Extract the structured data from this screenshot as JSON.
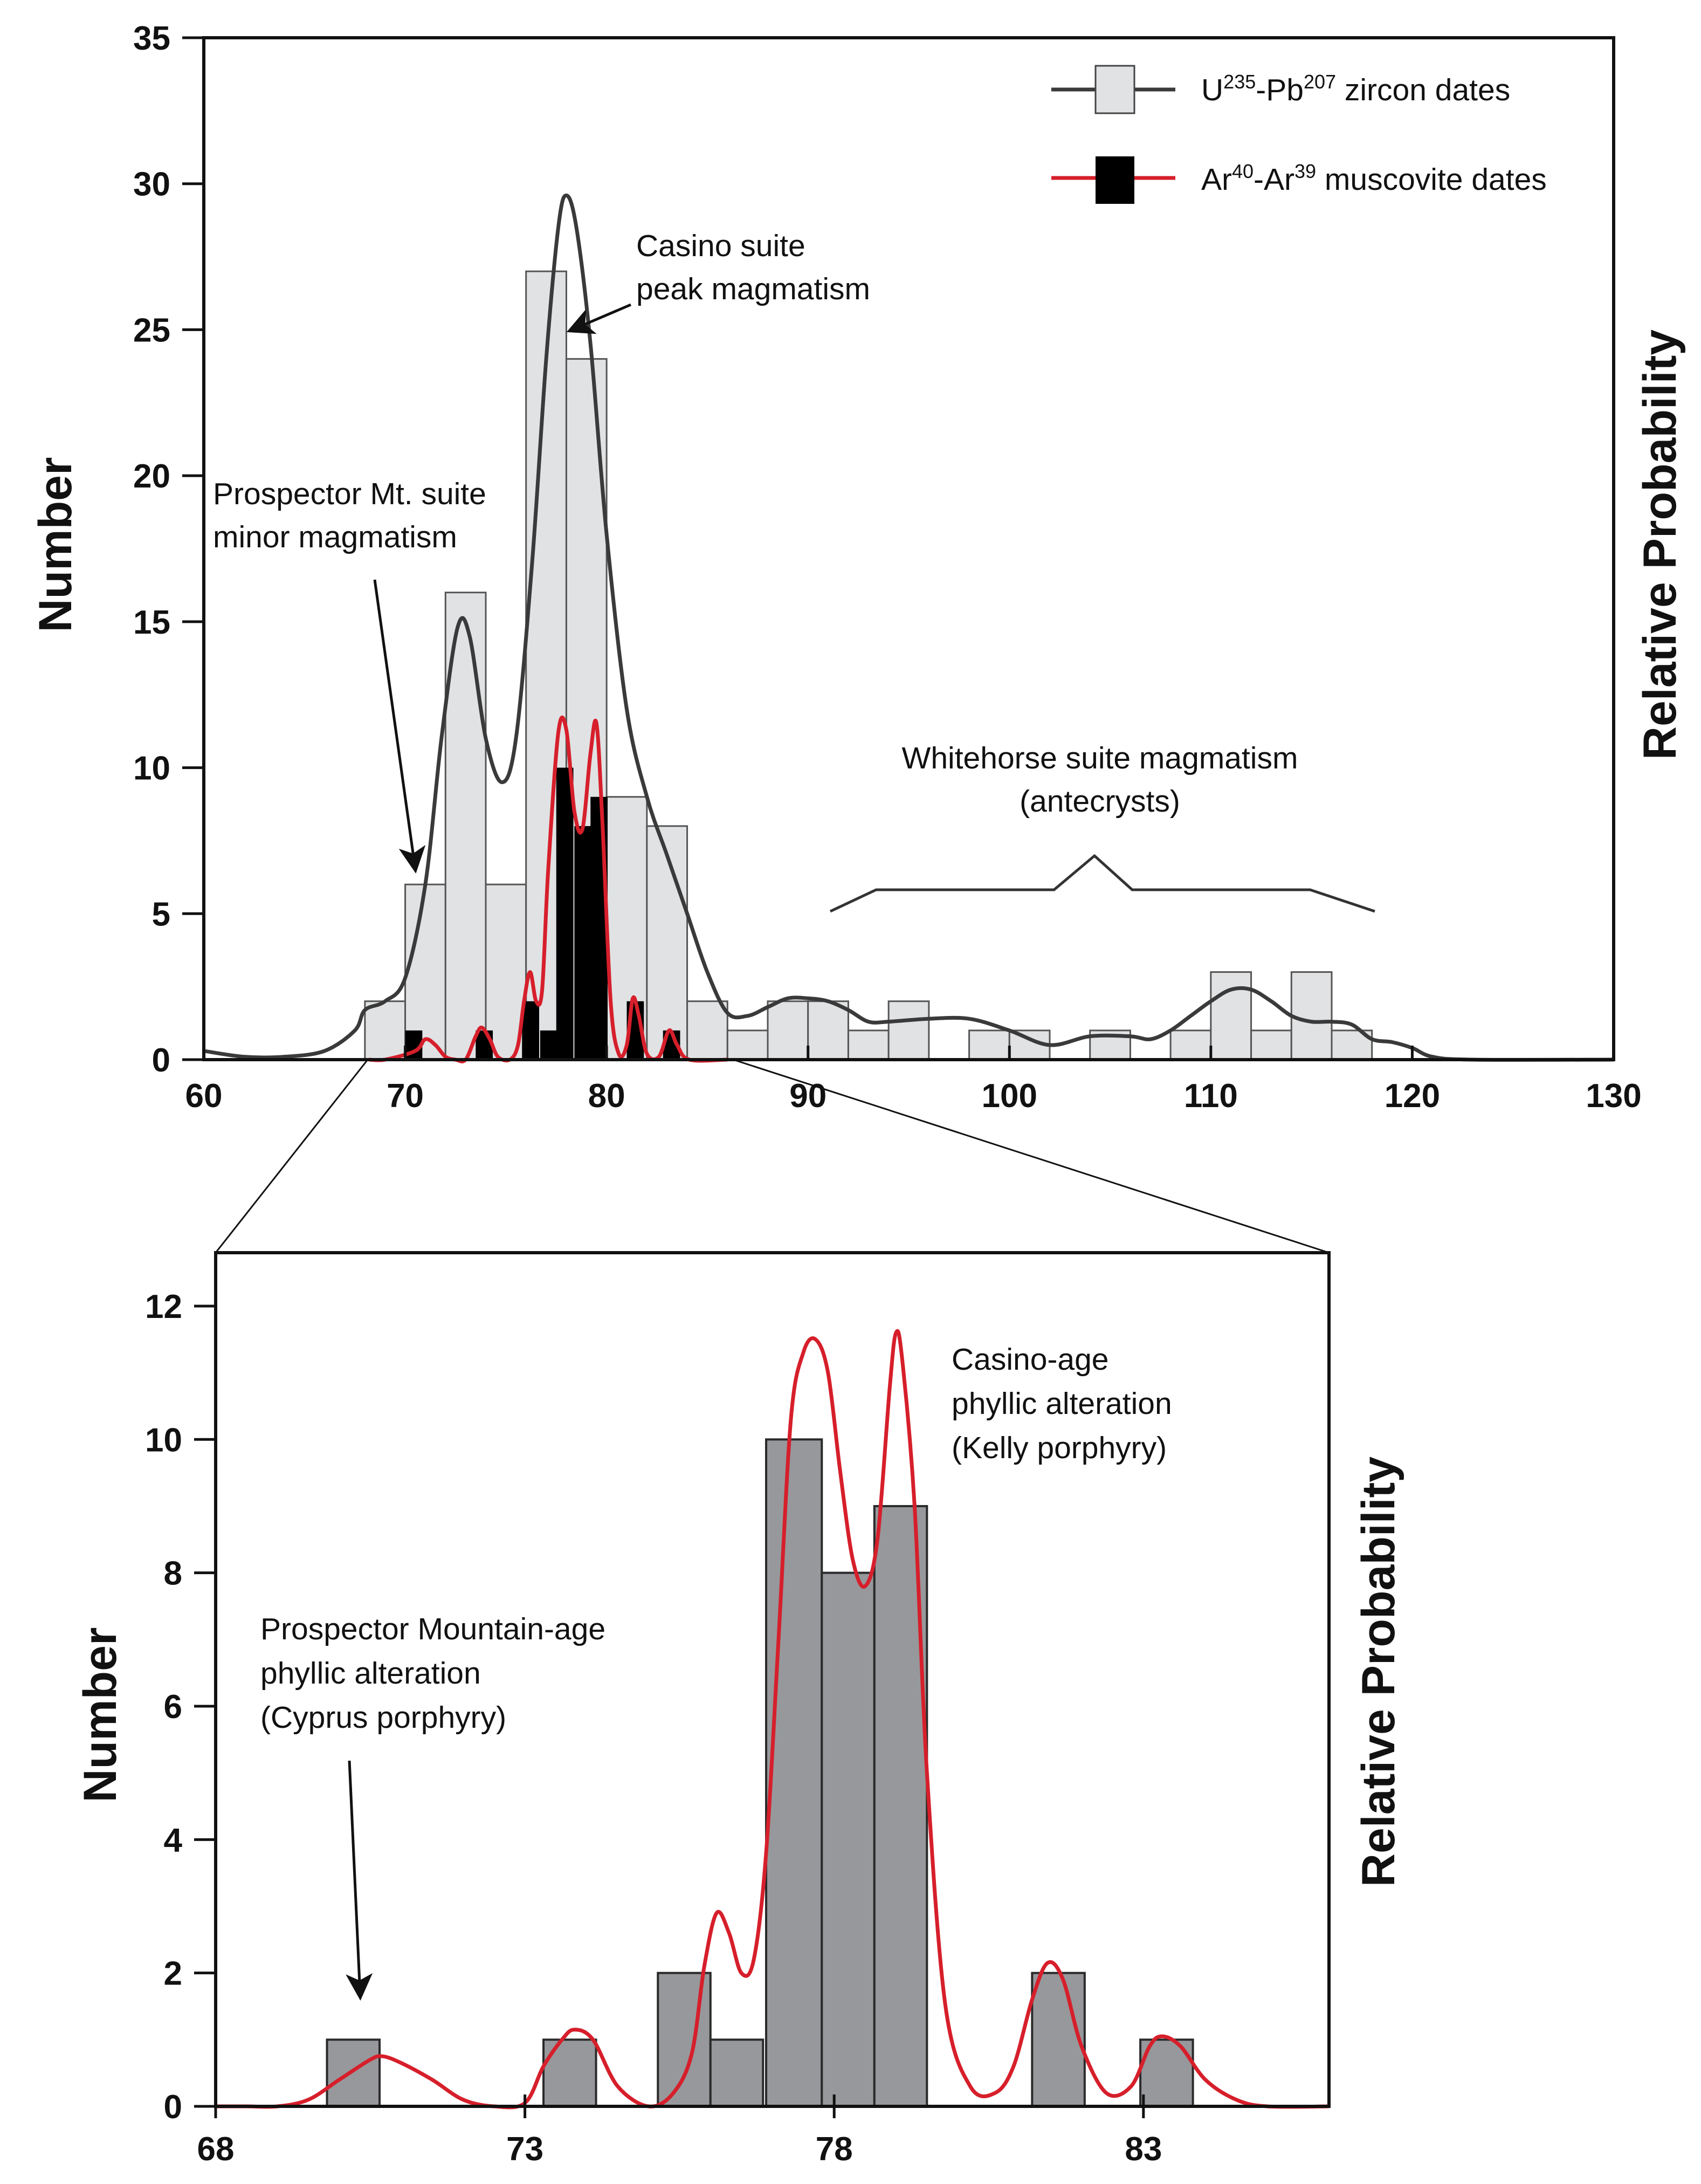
{
  "colors": {
    "zircon_bar": "#e1e2e4",
    "muscovite_bar": "#000000",
    "zoom_bar": "#97989b",
    "zircon_curve": "#3a3a3a",
    "muscovite_curve": "#d61f2b",
    "axis": "#111111"
  },
  "chart_data": [
    {
      "id": "main",
      "type": "bar",
      "ylabel": "Number",
      "y2label": "Relative Probability",
      "xlim": [
        60,
        130
      ],
      "ylim": [
        0,
        35
      ],
      "x_ticks": [
        "60",
        "70",
        "80",
        "90",
        "100",
        "110",
        "120",
        "130"
      ],
      "x_tick_values": [
        60,
        70,
        80,
        90,
        100,
        110,
        120,
        130
      ],
      "y_ticks": [
        "0",
        "5",
        "10",
        "15",
        "20",
        "25",
        "30",
        "35"
      ],
      "y_tick_values": [
        0,
        5,
        10,
        15,
        20,
        25,
        30,
        35
      ],
      "bin_width": 2,
      "legend": {
        "zircon": {
          "base": "U",
          "sup1": "235",
          "mid": "-Pb",
          "sup2": "207",
          "tail": " zircon dates"
        },
        "muscovite": {
          "base": "Ar",
          "sup1": "40",
          "mid": "-Ar",
          "sup2": "39",
          "tail": " muscovite dates"
        }
      },
      "series": [
        {
          "name": "U235-Pb207 zircon dates",
          "bins": [
            {
              "start": 68,
              "value": 2
            },
            {
              "start": 70,
              "value": 6
            },
            {
              "start": 72,
              "value": 16
            },
            {
              "start": 74,
              "value": 6
            },
            {
              "start": 76,
              "value": 27
            },
            {
              "start": 78,
              "value": 24
            },
            {
              "start": 80,
              "value": 9
            },
            {
              "start": 82,
              "value": 8
            },
            {
              "start": 84,
              "value": 2
            },
            {
              "start": 86,
              "value": 1
            },
            {
              "start": 88,
              "value": 2
            },
            {
              "start": 90,
              "value": 2
            },
            {
              "start": 92,
              "value": 1
            },
            {
              "start": 94,
              "value": 2
            },
            {
              "start": 98,
              "value": 1
            },
            {
              "start": 100,
              "value": 1
            },
            {
              "start": 104,
              "value": 1
            },
            {
              "start": 108,
              "value": 1
            },
            {
              "start": 110,
              "value": 3
            },
            {
              "start": 112,
              "value": 1
            },
            {
              "start": 114,
              "value": 3
            },
            {
              "start": 116,
              "value": 1
            }
          ]
        },
        {
          "name": "Ar40-Ar39 muscovite dates",
          "bins": [
            {
              "start": 70,
              "value": 1
            },
            {
              "start": 73.5,
              "value": 1
            },
            {
              "start": 75.8,
              "value": 2
            },
            {
              "start": 76.7,
              "value": 1
            },
            {
              "start": 77.5,
              "value": 10
            },
            {
              "start": 78.4,
              "value": 8
            },
            {
              "start": 79.2,
              "value": 9
            },
            {
              "start": 81,
              "value": 2
            },
            {
              "start": 82.8,
              "value": 1
            }
          ]
        }
      ],
      "curves": [
        {
          "name": "zircon relative probability",
          "points": [
            [
              60,
              0.3
            ],
            [
              62,
              0.1
            ],
            [
              64,
              0.1
            ],
            [
              66,
              0.3
            ],
            [
              67.5,
              1.0
            ],
            [
              68,
              1.7
            ],
            [
              69,
              2.0
            ],
            [
              70,
              2.8
            ],
            [
              71,
              6.0
            ],
            [
              71.8,
              11.0
            ],
            [
              72.6,
              14.8
            ],
            [
              73.2,
              14.5
            ],
            [
              74,
              11.0
            ],
            [
              74.8,
              9.5
            ],
            [
              75.5,
              11.0
            ],
            [
              76.3,
              17.0
            ],
            [
              77,
              24.0
            ],
            [
              77.6,
              28.5
            ],
            [
              78,
              29.6
            ],
            [
              78.5,
              28.5
            ],
            [
              79.2,
              24.5
            ],
            [
              80,
              18.0
            ],
            [
              81,
              12.0
            ],
            [
              82,
              9.0
            ],
            [
              83,
              7.0
            ],
            [
              84,
              5.0
            ],
            [
              85,
              3.0
            ],
            [
              86,
              1.6
            ],
            [
              87,
              1.5
            ],
            [
              88,
              1.8
            ],
            [
              89,
              2.1
            ],
            [
              90,
              2.1
            ],
            [
              91,
              2.0
            ],
            [
              92,
              1.7
            ],
            [
              93,
              1.3
            ],
            [
              94,
              1.3
            ],
            [
              96,
              1.4
            ],
            [
              98,
              1.4
            ],
            [
              100,
              1.0
            ],
            [
              102,
              0.5
            ],
            [
              104,
              0.8
            ],
            [
              106,
              0.8
            ],
            [
              107,
              0.7
            ],
            [
              108,
              1.0
            ],
            [
              109,
              1.5
            ],
            [
              110,
              2.0
            ],
            [
              111,
              2.4
            ],
            [
              112,
              2.4
            ],
            [
              113,
              2.0
            ],
            [
              114,
              1.5
            ],
            [
              115,
              1.3
            ],
            [
              116,
              1.3
            ],
            [
              117,
              1.2
            ],
            [
              118,
              0.7
            ],
            [
              119,
              0.6
            ],
            [
              120,
              0.4
            ],
            [
              121,
              0.1
            ],
            [
              123,
              0.0
            ],
            [
              130,
              0.0
            ]
          ]
        },
        {
          "name": "muscovite relative probability",
          "points": [
            [
              68.2,
              0.0
            ],
            [
              69,
              0.0
            ],
            [
              70.5,
              0.3
            ],
            [
              71,
              0.7
            ],
            [
              71.5,
              0.5
            ],
            [
              72,
              0.1
            ],
            [
              72.5,
              0.0
            ],
            [
              73,
              0.0
            ],
            [
              73.5,
              0.8
            ],
            [
              73.8,
              1.1
            ],
            [
              74.2,
              0.7
            ],
            [
              74.6,
              0.1
            ],
            [
              75.2,
              0.0
            ],
            [
              75.6,
              0.5
            ],
            [
              75.9,
              2.0
            ],
            [
              76.2,
              3.0
            ],
            [
              76.5,
              2.0
            ],
            [
              76.8,
              2.4
            ],
            [
              77.1,
              6.5
            ],
            [
              77.6,
              11.2
            ],
            [
              78,
              11.3
            ],
            [
              78.4,
              8.5
            ],
            [
              78.8,
              7.9
            ],
            [
              79.2,
              10.5
            ],
            [
              79.5,
              11.5
            ],
            [
              79.8,
              8.0
            ],
            [
              80.2,
              2.0
            ],
            [
              80.6,
              0.2
            ],
            [
              81,
              0.5
            ],
            [
              81.3,
              2.1
            ],
            [
              81.6,
              1.5
            ],
            [
              82,
              0.2
            ],
            [
              82.6,
              0.1
            ],
            [
              83.1,
              1.0
            ],
            [
              83.5,
              0.5
            ],
            [
              84.1,
              0.0
            ],
            [
              86,
              0.0
            ]
          ]
        }
      ],
      "annotations": {
        "casino_line1": "Casino suite",
        "casino_line2": "peak magmatism",
        "prospector_line1": "Prospector Mt. suite",
        "prospector_line2": "minor magmatism",
        "whitehorse_line1": "Whitehorse suite magmatism",
        "whitehorse_line2": "(antecrysts)"
      }
    },
    {
      "id": "zoom",
      "type": "bar",
      "ylabel": "Number",
      "y2label": "Relative Probability",
      "xlim": [
        68,
        86
      ],
      "ylim": [
        0,
        12.8
      ],
      "x_ticks": [
        "68",
        "73",
        "78",
        "83"
      ],
      "x_tick_values": [
        68,
        73,
        78,
        83
      ],
      "y_ticks": [
        "0",
        "2",
        "4",
        "6",
        "8",
        "10",
        "12"
      ],
      "y_tick_values": [
        0,
        2,
        4,
        6,
        8,
        10,
        12
      ],
      "series": [
        {
          "name": "Ar40-Ar39 muscovite dates",
          "bins": [
            {
              "start": 69.8,
              "end": 70.65,
              "value": 1
            },
            {
              "start": 73.3,
              "end": 74.15,
              "value": 1
            },
            {
              "start": 75.15,
              "end": 76.0,
              "value": 2
            },
            {
              "start": 76.0,
              "end": 76.85,
              "value": 1
            },
            {
              "start": 76.9,
              "end": 77.8,
              "value": 10
            },
            {
              "start": 77.8,
              "end": 78.65,
              "value": 8
            },
            {
              "start": 78.65,
              "end": 79.5,
              "value": 9
            },
            {
              "start": 81.2,
              "end": 82.05,
              "value": 2
            },
            {
              "start": 82.95,
              "end": 83.8,
              "value": 1
            }
          ]
        }
      ],
      "curves": [
        {
          "name": "muscovite relative probability",
          "points": [
            [
              68,
              0.0
            ],
            [
              68.5,
              0.0
            ],
            [
              69,
              0.0
            ],
            [
              69.5,
              0.1
            ],
            [
              70,
              0.4
            ],
            [
              70.5,
              0.7
            ],
            [
              70.7,
              0.75
            ],
            [
              71,
              0.65
            ],
            [
              71.5,
              0.4
            ],
            [
              72,
              0.1
            ],
            [
              72.5,
              0.0
            ],
            [
              73,
              0.05
            ],
            [
              73.3,
              0.6
            ],
            [
              73.6,
              1.0
            ],
            [
              73.8,
              1.15
            ],
            [
              74.1,
              1.0
            ],
            [
              74.5,
              0.3
            ],
            [
              75,
              0.0
            ],
            [
              75.4,
              0.2
            ],
            [
              75.7,
              0.8
            ],
            [
              75.9,
              2.1
            ],
            [
              76.1,
              2.9
            ],
            [
              76.3,
              2.6
            ],
            [
              76.5,
              2.0
            ],
            [
              76.7,
              2.2
            ],
            [
              76.9,
              3.8
            ],
            [
              77.1,
              7.0
            ],
            [
              77.3,
              10.3
            ],
            [
              77.5,
              11.3
            ],
            [
              77.7,
              11.5
            ],
            [
              77.9,
              11.0
            ],
            [
              78.1,
              9.5
            ],
            [
              78.3,
              8.2
            ],
            [
              78.5,
              7.8
            ],
            [
              78.7,
              8.5
            ],
            [
              78.9,
              10.8
            ],
            [
              79.0,
              11.6
            ],
            [
              79.1,
              11.2
            ],
            [
              79.3,
              9.0
            ],
            [
              79.5,
              5.0
            ],
            [
              79.8,
              1.5
            ],
            [
              80.2,
              0.3
            ],
            [
              80.6,
              0.2
            ],
            [
              80.9,
              0.6
            ],
            [
              81.2,
              1.6
            ],
            [
              81.45,
              2.15
            ],
            [
              81.7,
              1.9
            ],
            [
              82.0,
              0.9
            ],
            [
              82.4,
              0.2
            ],
            [
              82.8,
              0.3
            ],
            [
              83.1,
              0.9
            ],
            [
              83.3,
              1.05
            ],
            [
              83.6,
              0.9
            ],
            [
              84,
              0.4
            ],
            [
              84.5,
              0.1
            ],
            [
              85,
              0.0
            ],
            [
              86,
              0.0
            ]
          ]
        }
      ],
      "annotations": {
        "casino_line1": "Casino-age",
        "casino_line2": "phyllic alteration",
        "casino_line3": "(Kelly porphyry)",
        "prospector_line1": "Prospector Mountain-age",
        "prospector_line2": "phyllic alteration",
        "prospector_line3": "(Cyprus porphyry)"
      }
    }
  ]
}
